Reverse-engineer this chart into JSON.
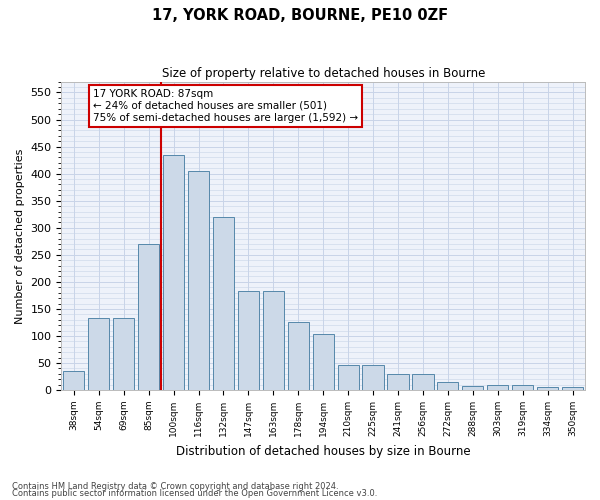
{
  "title": "17, YORK ROAD, BOURNE, PE10 0ZF",
  "subtitle": "Size of property relative to detached houses in Bourne",
  "xlabel": "Distribution of detached houses by size in Bourne",
  "ylabel": "Number of detached properties",
  "footer_line1": "Contains HM Land Registry data © Crown copyright and database right 2024.",
  "footer_line2": "Contains public sector information licensed under the Open Government Licence v3.0.",
  "annotation_title": "17 YORK ROAD: 87sqm",
  "annotation_line1": "← 24% of detached houses are smaller (501)",
  "annotation_line2": "75% of semi-detached houses are larger (1,592) →",
  "bar_color": "#ccd9e8",
  "bar_edge_color": "#5588aa",
  "marker_line_color": "#cc0000",
  "categories": [
    "38sqm",
    "54sqm",
    "69sqm",
    "85sqm",
    "100sqm",
    "116sqm",
    "132sqm",
    "147sqm",
    "163sqm",
    "178sqm",
    "194sqm",
    "210sqm",
    "225sqm",
    "241sqm",
    "256sqm",
    "272sqm",
    "288sqm",
    "303sqm",
    "319sqm",
    "334sqm",
    "350sqm"
  ],
  "values": [
    35,
    133,
    133,
    270,
    435,
    405,
    320,
    183,
    183,
    125,
    103,
    47,
    46,
    30,
    30,
    15,
    8,
    10,
    9,
    5,
    5
  ],
  "ylim": [
    0,
    570
  ],
  "yticks": [
    0,
    50,
    100,
    150,
    200,
    250,
    300,
    350,
    400,
    450,
    500,
    550
  ],
  "grid_color": "#c8d4e8",
  "background_color": "#eef2fa"
}
